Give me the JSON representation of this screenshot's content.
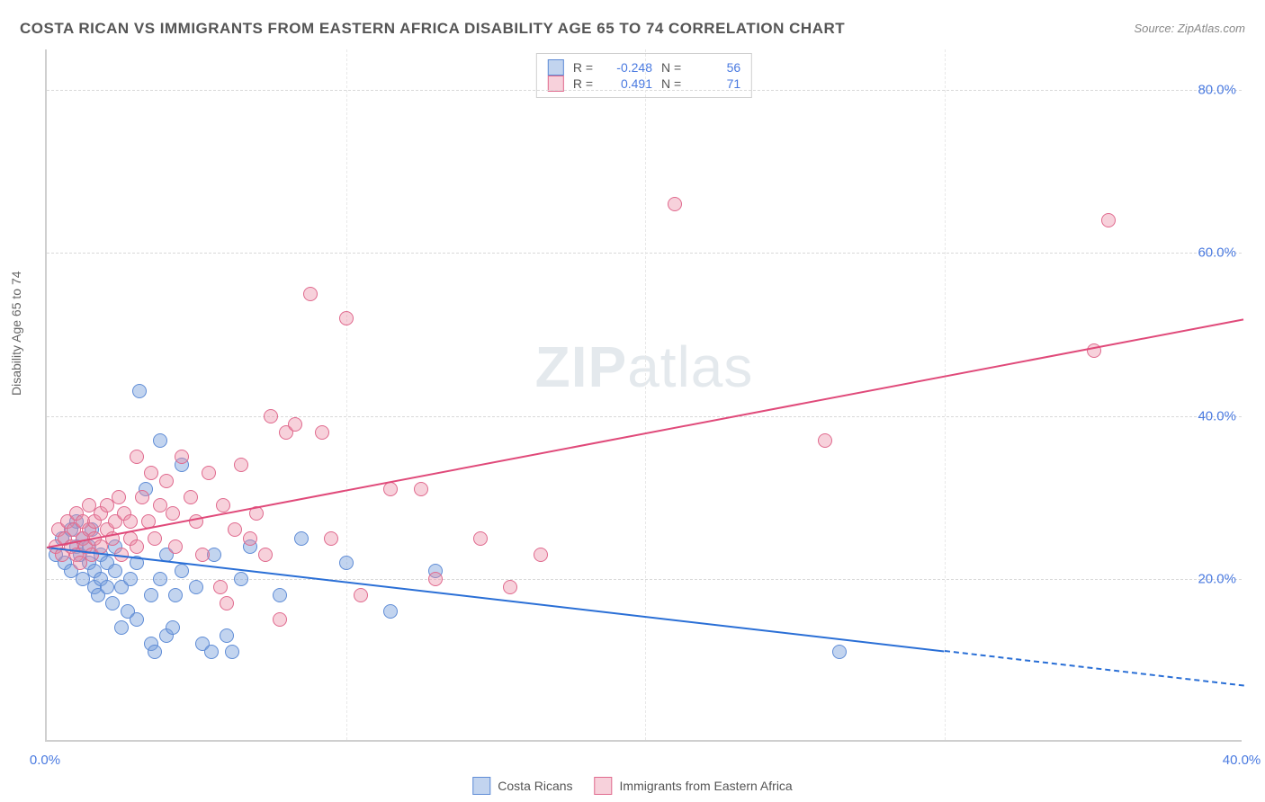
{
  "chart": {
    "type": "scatter",
    "title": "COSTA RICAN VS IMMIGRANTS FROM EASTERN AFRICA DISABILITY AGE 65 TO 74 CORRELATION CHART",
    "source": "Source: ZipAtlas.com",
    "y_axis_title": "Disability Age 65 to 74",
    "watermark_bold": "ZIP",
    "watermark_light": "atlas",
    "background_color": "#ffffff",
    "grid_color": "#d9d9d9",
    "axis_color": "#cfcfcf",
    "tick_color": "#4a7ae0",
    "x_axis": {
      "min": 0,
      "max": 40,
      "ticks": [
        0,
        10,
        20,
        30,
        40
      ],
      "tick_labels": [
        "0.0%",
        "",
        "",
        "",
        "40.0%"
      ],
      "gridline_at": [
        10,
        20,
        30
      ]
    },
    "y_axis": {
      "min": 0,
      "max": 85,
      "ticks": [
        20,
        40,
        60,
        80
      ],
      "tick_labels": [
        "20.0%",
        "40.0%",
        "60.0%",
        "80.0%"
      ]
    },
    "series": [
      {
        "name": "Costa Ricans",
        "fill": "rgba(120,160,220,0.45)",
        "stroke": "#5f8cd6",
        "trend_color": "#2a6fd6",
        "trend_start_y": 24,
        "trend_end_y": 7,
        "dash_after_x": 30,
        "R_label": "R =",
        "R": "-0.248",
        "N_label": "N =",
        "N": "56",
        "point_radius": 8,
        "points": [
          [
            0.3,
            23
          ],
          [
            0.5,
            25
          ],
          [
            0.6,
            22
          ],
          [
            0.8,
            26
          ],
          [
            0.8,
            21
          ],
          [
            1.0,
            24
          ],
          [
            1.0,
            27
          ],
          [
            1.1,
            23
          ],
          [
            1.2,
            25
          ],
          [
            1.2,
            20
          ],
          [
            1.4,
            24
          ],
          [
            1.4,
            22
          ],
          [
            1.5,
            26
          ],
          [
            1.6,
            21
          ],
          [
            1.6,
            19
          ],
          [
            1.7,
            18
          ],
          [
            1.8,
            20
          ],
          [
            1.8,
            23
          ],
          [
            2.0,
            22
          ],
          [
            2.0,
            19
          ],
          [
            2.2,
            17
          ],
          [
            2.3,
            21
          ],
          [
            2.3,
            24
          ],
          [
            2.5,
            19
          ],
          [
            2.5,
            14
          ],
          [
            2.7,
            16
          ],
          [
            2.8,
            20
          ],
          [
            3.0,
            22
          ],
          [
            3.0,
            15
          ],
          [
            3.1,
            43
          ],
          [
            3.3,
            31
          ],
          [
            3.5,
            18
          ],
          [
            3.5,
            12
          ],
          [
            3.6,
            11
          ],
          [
            3.8,
            20
          ],
          [
            3.8,
            37
          ],
          [
            4.0,
            23
          ],
          [
            4.0,
            13
          ],
          [
            4.2,
            14
          ],
          [
            4.3,
            18
          ],
          [
            4.5,
            21
          ],
          [
            4.5,
            34
          ],
          [
            5.0,
            19
          ],
          [
            5.2,
            12
          ],
          [
            5.5,
            11
          ],
          [
            5.6,
            23
          ],
          [
            6.0,
            13
          ],
          [
            6.2,
            11
          ],
          [
            6.5,
            20
          ],
          [
            6.8,
            24
          ],
          [
            7.8,
            18
          ],
          [
            8.5,
            25
          ],
          [
            10.0,
            22
          ],
          [
            11.5,
            16
          ],
          [
            13.0,
            21
          ],
          [
            26.5,
            11
          ]
        ]
      },
      {
        "name": "Immigrants from Eastern Africa",
        "fill": "rgba(236,140,165,0.40)",
        "stroke": "#e06a8e",
        "trend_color": "#e04a7a",
        "trend_start_y": 24,
        "trend_end_y": 52,
        "dash_after_x": 40,
        "R_label": "R =",
        "R": "0.491",
        "N_label": "N =",
        "N": "71",
        "point_radius": 8,
        "points": [
          [
            0.3,
            24
          ],
          [
            0.4,
            26
          ],
          [
            0.5,
            23
          ],
          [
            0.6,
            25
          ],
          [
            0.7,
            27
          ],
          [
            0.8,
            24
          ],
          [
            0.9,
            26
          ],
          [
            1.0,
            23
          ],
          [
            1.0,
            28
          ],
          [
            1.1,
            22
          ],
          [
            1.2,
            25
          ],
          [
            1.2,
            27
          ],
          [
            1.3,
            24
          ],
          [
            1.4,
            26
          ],
          [
            1.4,
            29
          ],
          [
            1.5,
            23
          ],
          [
            1.6,
            27
          ],
          [
            1.6,
            25
          ],
          [
            1.8,
            28
          ],
          [
            1.8,
            24
          ],
          [
            2.0,
            26
          ],
          [
            2.0,
            29
          ],
          [
            2.2,
            25
          ],
          [
            2.3,
            27
          ],
          [
            2.4,
            30
          ],
          [
            2.5,
            23
          ],
          [
            2.6,
            28
          ],
          [
            2.8,
            25
          ],
          [
            2.8,
            27
          ],
          [
            3.0,
            24
          ],
          [
            3.0,
            35
          ],
          [
            3.2,
            30
          ],
          [
            3.4,
            27
          ],
          [
            3.5,
            33
          ],
          [
            3.6,
            25
          ],
          [
            3.8,
            29
          ],
          [
            4.0,
            32
          ],
          [
            4.2,
            28
          ],
          [
            4.3,
            24
          ],
          [
            4.5,
            35
          ],
          [
            4.8,
            30
          ],
          [
            5.0,
            27
          ],
          [
            5.2,
            23
          ],
          [
            5.4,
            33
          ],
          [
            5.8,
            19
          ],
          [
            5.9,
            29
          ],
          [
            6.0,
            17
          ],
          [
            6.3,
            26
          ],
          [
            6.5,
            34
          ],
          [
            6.8,
            25
          ],
          [
            7.0,
            28
          ],
          [
            7.3,
            23
          ],
          [
            7.5,
            40
          ],
          [
            7.8,
            15
          ],
          [
            8.0,
            38
          ],
          [
            8.3,
            39
          ],
          [
            8.8,
            55
          ],
          [
            9.2,
            38
          ],
          [
            9.5,
            25
          ],
          [
            10.0,
            52
          ],
          [
            10.5,
            18
          ],
          [
            11.5,
            31
          ],
          [
            12.5,
            31
          ],
          [
            13.0,
            20
          ],
          [
            14.5,
            25
          ],
          [
            15.5,
            19
          ],
          [
            16.5,
            23
          ],
          [
            21.0,
            66
          ],
          [
            26.0,
            37
          ],
          [
            35.0,
            48
          ],
          [
            35.5,
            64
          ]
        ]
      }
    ],
    "legend": {
      "items": [
        {
          "label": "Costa Ricans",
          "fill": "rgba(120,160,220,0.45)",
          "stroke": "#5f8cd6"
        },
        {
          "label": "Immigrants from Eastern Africa",
          "fill": "rgba(236,140,165,0.40)",
          "stroke": "#e06a8e"
        }
      ]
    }
  }
}
